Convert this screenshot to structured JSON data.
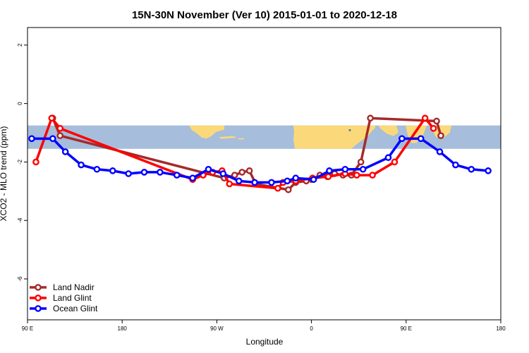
{
  "chart_data": {
    "type": "line",
    "title": "15N-30N November (Ver 10)   2015-01-01 to 2020-12-18",
    "xlabel": "Longitude",
    "ylabel": "XCO2 - MLO trend (ppm)",
    "xlim": [
      90,
      540
    ],
    "ylim": [
      -7.4,
      2.6
    ],
    "x_ticks": [
      {
        "value": 90,
        "label": "90 E"
      },
      {
        "value": 180,
        "label": "180"
      },
      {
        "value": 270,
        "label": "90 W"
      },
      {
        "value": 360,
        "label": "0"
      },
      {
        "value": 450,
        "label": "90 E"
      },
      {
        "value": 540,
        "label": "180"
      }
    ],
    "y_ticks": [
      {
        "value": 2,
        "label": "2"
      },
      {
        "value": 0,
        "label": "0"
      },
      {
        "value": -2,
        "label": "-2"
      },
      {
        "value": -4,
        "label": "-4"
      },
      {
        "value": -6,
        "label": "-6"
      }
    ],
    "map_band": {
      "y_top": -0.75,
      "y_bottom": -1.55,
      "ocean_color": "#a6bddb",
      "land_color": "#fbd97a"
    },
    "series": [
      {
        "name": "Land Nadir",
        "color": "#a52a2a",
        "x": [
          114,
          121,
          277,
          287,
          294,
          301,
          307,
          338,
          345,
          355,
          360,
          368,
          375,
          382,
          390,
          398,
          407,
          416,
          479,
          483
        ],
        "y": [
          -0.5,
          -1.1,
          -2.55,
          -2.45,
          -2.35,
          -2.3,
          -2.75,
          -2.95,
          -2.7,
          -2.65,
          -2.6,
          -2.45,
          -2.5,
          -2.4,
          -2.45,
          -2.45,
          -2.0,
          -0.5,
          -0.6,
          -1.1
        ]
      },
      {
        "name": "Land Glint",
        "color": "#ff0000",
        "x": [
          98,
          113,
          121,
          247,
          257,
          266,
          275,
          282,
          328,
          333,
          345,
          361,
          376,
          392,
          403,
          418,
          439,
          468,
          476
        ],
        "y": [
          -2.0,
          -0.5,
          -0.85,
          -2.6,
          -2.45,
          -2.35,
          -2.3,
          -2.75,
          -2.9,
          -2.7,
          -2.65,
          -2.55,
          -2.5,
          -2.4,
          -2.45,
          -2.45,
          -2.0,
          -0.5,
          -0.85
        ]
      },
      {
        "name": "Ocean Glint",
        "color": "#0000ff",
        "x": [
          94,
          114,
          126,
          141,
          156,
          171,
          186,
          201,
          216,
          232,
          247,
          262,
          276,
          291,
          306,
          322,
          337,
          345,
          362,
          377,
          392,
          409,
          433,
          446,
          464,
          482,
          497,
          512,
          528
        ],
        "y": [
          -1.2,
          -1.2,
          -1.65,
          -2.1,
          -2.25,
          -2.3,
          -2.4,
          -2.35,
          -2.35,
          -2.45,
          -2.55,
          -2.25,
          -2.4,
          -2.65,
          -2.7,
          -2.7,
          -2.65,
          -2.55,
          -2.6,
          -2.3,
          -2.25,
          -2.25,
          -1.85,
          -1.2,
          -1.2,
          -1.65,
          -2.1,
          -2.25,
          -2.3
        ]
      }
    ],
    "legend_position": "bottom-left"
  }
}
